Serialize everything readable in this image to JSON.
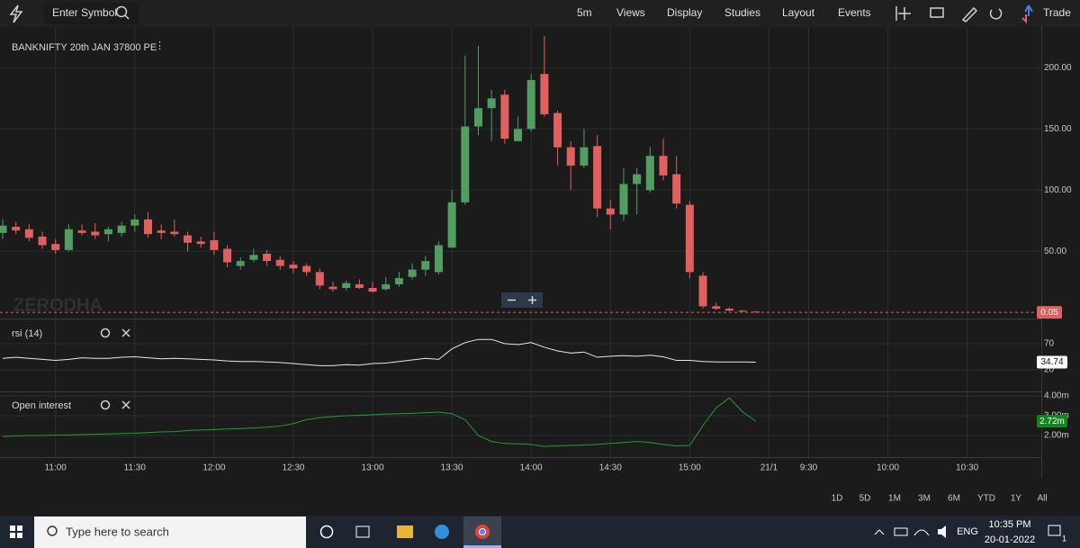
{
  "toolbar": {
    "search_placeholder": "Enter Symbol",
    "items": [
      "5m",
      "Views",
      "Display",
      "Studies",
      "Layout",
      "Events"
    ],
    "trade": "Trade"
  },
  "watermark": "ZERODHA",
  "chart_data": [
    {
      "type": "candlestick",
      "title": "BANKNIFTY 20th JAN 37800 PE",
      "up_color": "#529e62",
      "down_color": "#e0605f",
      "grid": true,
      "categories": [
        null,
        null,
        null,
        null,
        "11:00",
        null,
        null,
        null,
        null,
        null,
        "11:30",
        null,
        null,
        null,
        null,
        null,
        "12:00",
        null,
        null,
        null,
        null,
        null,
        "12:30",
        null,
        null,
        null,
        null,
        null,
        "13:00",
        null,
        null,
        null,
        null,
        null,
        "13:30",
        null,
        null,
        null,
        null,
        null,
        "14:00",
        null,
        null,
        null,
        null,
        null,
        "14:30",
        null,
        null,
        null,
        null,
        null,
        "15:00",
        null,
        null,
        null,
        null,
        null,
        "21/1",
        null,
        null,
        "9:30",
        null,
        null,
        null,
        null,
        null,
        "10:00",
        null,
        null,
        null,
        null,
        null,
        "10:30",
        null,
        null,
        null,
        null
      ],
      "open": [
        65,
        70,
        68,
        62,
        56,
        51,
        67,
        66,
        64,
        65,
        71,
        76,
        67,
        66,
        63,
        58,
        59,
        52,
        38,
        43,
        48,
        43,
        39,
        38,
        33,
        21,
        20,
        23,
        20,
        19,
        23,
        29,
        35,
        33,
        53,
        90,
        152,
        167,
        178,
        140,
        150,
        195,
        163,
        135,
        120,
        136,
        85,
        80,
        105,
        100,
        128,
        113,
        88,
        30,
        5,
        3,
        1.5,
        0.7,
        null,
        null,
        null,
        null,
        null,
        null,
        null,
        null,
        null,
        null,
        null,
        null,
        null,
        null,
        null,
        null,
        null,
        null,
        null,
        null
      ],
      "high": [
        76,
        74,
        72,
        66,
        60,
        72,
        72,
        73,
        70,
        74,
        80,
        82,
        72,
        76,
        66,
        62,
        66,
        55,
        45,
        52,
        51,
        46,
        42,
        40,
        36,
        25,
        26,
        27,
        25,
        29,
        33,
        40,
        46,
        58,
        100,
        210,
        218,
        182,
        182,
        160,
        195,
        226,
        165,
        140,
        150,
        145,
        92,
        118,
        118,
        135,
        142,
        128,
        91,
        33,
        8,
        4,
        2,
        1,
        null,
        null,
        null,
        null,
        null,
        null,
        null,
        null,
        null,
        null,
        null,
        null,
        null,
        null,
        null,
        null,
        null,
        null,
        null,
        null
      ],
      "low": [
        60,
        64,
        58,
        52,
        48,
        50,
        63,
        60,
        58,
        62,
        66,
        61,
        60,
        62,
        50,
        53,
        47,
        37,
        35,
        41,
        38,
        35,
        32,
        30,
        19,
        17,
        18,
        19,
        16,
        18,
        21,
        27,
        30,
        31,
        53,
        88,
        145,
        140,
        138,
        140,
        148,
        160,
        120,
        100,
        118,
        78,
        68,
        75,
        80,
        98,
        108,
        85,
        28,
        3,
        2,
        1,
        0.6,
        0.05,
        null,
        null,
        null,
        null,
        null,
        null,
        null,
        null,
        null,
        null,
        null,
        null,
        null,
        null,
        null,
        null,
        null,
        null,
        null,
        null
      ],
      "close": [
        71,
        67,
        61,
        55,
        51,
        68,
        65,
        63,
        68,
        71,
        76,
        64,
        65,
        64,
        57,
        56,
        51,
        41,
        42,
        47,
        42,
        38,
        36,
        33,
        22,
        19,
        24,
        20,
        17,
        23,
        28,
        35,
        42,
        55,
        90,
        152,
        167,
        175,
        142,
        150,
        190,
        162,
        135,
        120,
        135,
        85,
        80,
        105,
        113,
        128,
        112,
        89,
        33,
        5,
        3,
        1.5,
        0.7,
        0.05,
        null,
        null,
        null,
        null,
        null,
        null,
        null,
        null,
        null,
        null,
        null,
        null,
        null,
        null,
        null,
        null,
        null,
        null,
        null,
        null
      ],
      "close_label": "0.05",
      "ylim": [
        -5,
        226
      ],
      "yticks": [
        {
          "value": 50,
          "label": "50.00"
        },
        {
          "value": 100,
          "label": "100.00"
        },
        {
          "value": 150,
          "label": "150.00"
        },
        {
          "value": 200,
          "label": "200.00"
        }
      ]
    },
    {
      "type": "line",
      "title": "rsi (14)",
      "color": "#e8e8e8",
      "values": [
        42,
        44,
        42,
        40,
        38,
        40,
        43,
        42,
        42,
        44,
        45,
        43,
        41,
        42,
        41,
        40,
        39,
        37,
        36,
        36,
        35,
        34,
        32,
        30,
        28,
        28,
        30,
        29,
        32,
        33,
        36,
        39,
        42,
        40,
        60,
        72,
        78,
        78,
        70,
        68,
        72,
        63,
        56,
        52,
        54,
        44,
        46,
        47,
        46,
        48,
        45,
        38,
        38,
        36,
        35,
        35,
        35,
        34.74
      ],
      "value_label": "34.74",
      "ylim": [
        -21,
        116
      ],
      "yticks": [
        20,
        70
      ]
    },
    {
      "type": "line",
      "title": "Open interest",
      "color": "#1f9e2a",
      "values": [
        1950000,
        1980000,
        2000000,
        2000000,
        2020000,
        2030000,
        2050000,
        2060000,
        2080000,
        2100000,
        2120000,
        2150000,
        2180000,
        2200000,
        2250000,
        2280000,
        2300000,
        2330000,
        2350000,
        2380000,
        2420000,
        2480000,
        2600000,
        2800000,
        2900000,
        2950000,
        3000000,
        3020000,
        3050000,
        3080000,
        3100000,
        3120000,
        3150000,
        3180000,
        3100000,
        2800000,
        2000000,
        1700000,
        1600000,
        1580000,
        1550000,
        1450000,
        1480000,
        1500000,
        1520000,
        1550000,
        1600000,
        1650000,
        1700000,
        1650000,
        1550000,
        1480000,
        1500000,
        2500000,
        3400000,
        3900000,
        3200000,
        2720000
      ],
      "value_label": "2.72m",
      "ylim": [
        910000,
        4180000
      ],
      "yticks": [
        {
          "value": 2000000,
          "label": "2.00m"
        },
        {
          "value": 3000000,
          "label": "3.00m"
        },
        {
          "value": 4000000,
          "label": "4.00m"
        }
      ]
    }
  ],
  "ranges": [
    "1D",
    "5D",
    "1M",
    "3M",
    "6M",
    "YTD",
    "1Y",
    "All"
  ],
  "taskbar": {
    "search": "Type here to search",
    "lang": "ENG",
    "time": "10:35 PM",
    "date": "20-01-2022",
    "notifications": "1"
  }
}
